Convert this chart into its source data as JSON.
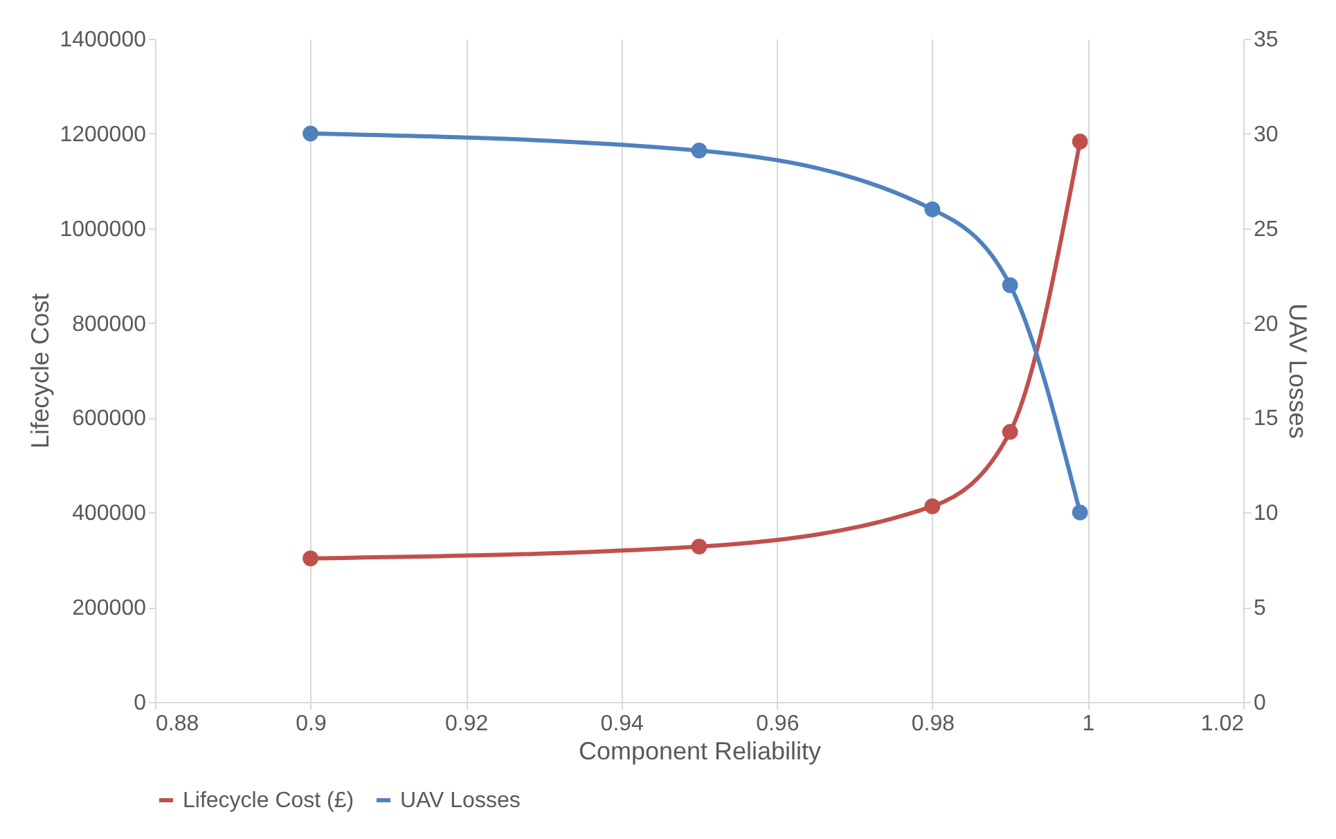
{
  "chart_data": {
    "type": "line",
    "xlabel": "Component Reliability",
    "ylabel": "Lifecycle Cost",
    "y2label": "UAV Losses",
    "x": [
      0.9,
      0.95,
      0.98,
      0.99,
      0.999
    ],
    "series": [
      {
        "name": "Lifecycle Cost (£)",
        "color": "#c0504d",
        "values": [
          303000,
          328000,
          413000,
          570000,
          1183000
        ]
      },
      {
        "name": "UAV Losses",
        "color": "#4f81bd",
        "axis": "y2",
        "values": [
          30,
          29.1,
          26,
          22,
          10
        ]
      }
    ],
    "xlim": [
      0.88,
      1.02
    ],
    "xticks": [
      0.88,
      0.9,
      0.92,
      0.94,
      0.96,
      0.98,
      1,
      1.02
    ],
    "ylim": [
      0,
      1400000
    ],
    "yticks": [
      0,
      200000,
      400000,
      600000,
      800000,
      1000000,
      1200000,
      1400000
    ],
    "y2lim": [
      0,
      35
    ],
    "y2ticks": [
      0,
      5,
      10,
      15,
      20,
      25,
      30,
      35
    ],
    "grid": "x",
    "legend": "bottom",
    "marker": "circle",
    "line_style": "solid"
  }
}
